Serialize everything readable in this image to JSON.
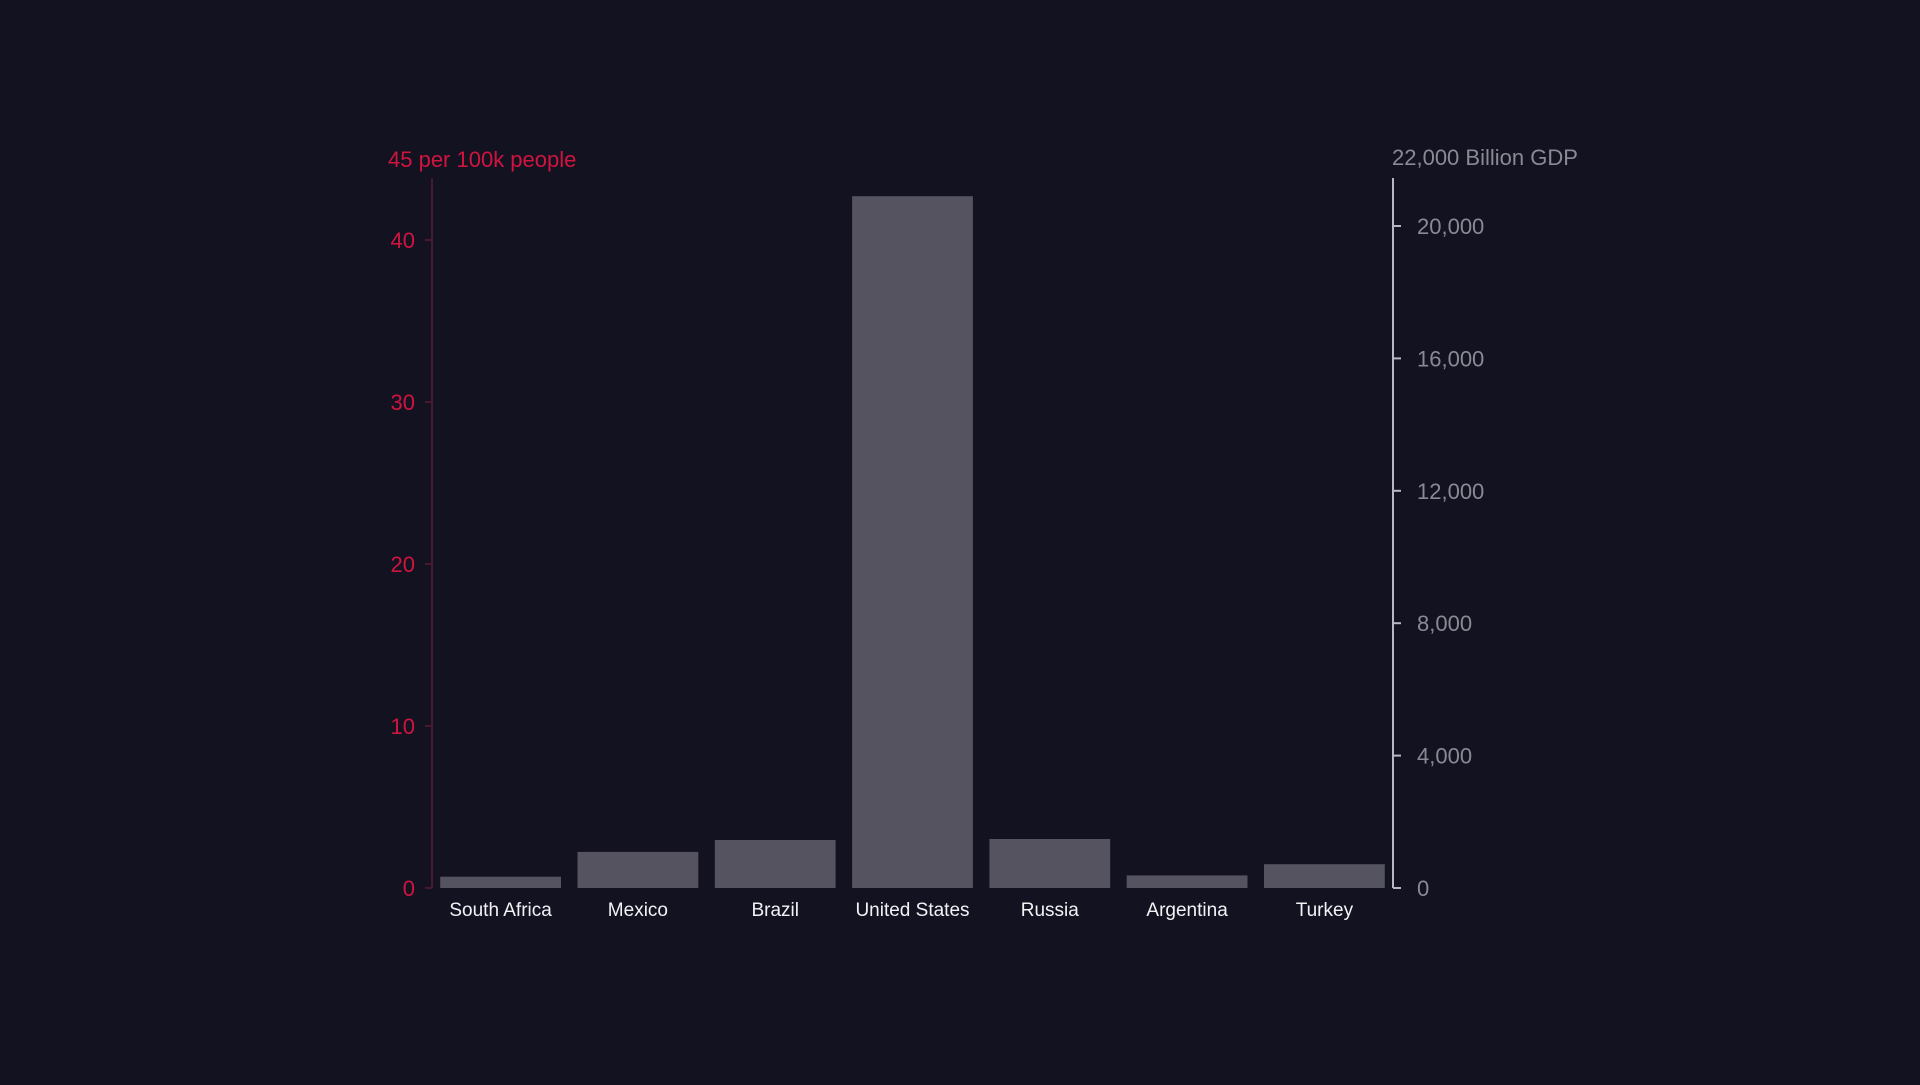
{
  "colors": {
    "background": "#131221",
    "bar": "#54535f",
    "left_axis": "#d0143f",
    "left_axis_line": "#5a1a33",
    "right_axis": "#8a8994",
    "right_axis_line": "#b9b8c2",
    "category_label": "#f2f2f5"
  },
  "chart_data": {
    "type": "bar",
    "categories": [
      "South Africa",
      "Mexico",
      "Brazil",
      "United States",
      "Russia",
      "Argentina",
      "Turkey"
    ],
    "series": [
      {
        "axis": "right",
        "values": [
          340,
          1090,
          1450,
          20900,
          1480,
          380,
          720
        ]
      }
    ],
    "left_axis": {
      "title": "45 per 100k people",
      "range": [
        0,
        45
      ],
      "ticks": [
        0,
        10,
        20,
        30,
        40
      ],
      "tick_labels": [
        "0",
        "10",
        "20",
        "30",
        "40"
      ]
    },
    "right_axis": {
      "title": "22,000 Billion GDP",
      "range": [
        0,
        22000
      ],
      "ticks": [
        0,
        4000,
        8000,
        12000,
        16000,
        20000
      ],
      "tick_labels": [
        "0",
        "4,000",
        "8,000",
        "12,000",
        "16,000",
        "20,000"
      ]
    },
    "grid": false,
    "legend": "none"
  }
}
